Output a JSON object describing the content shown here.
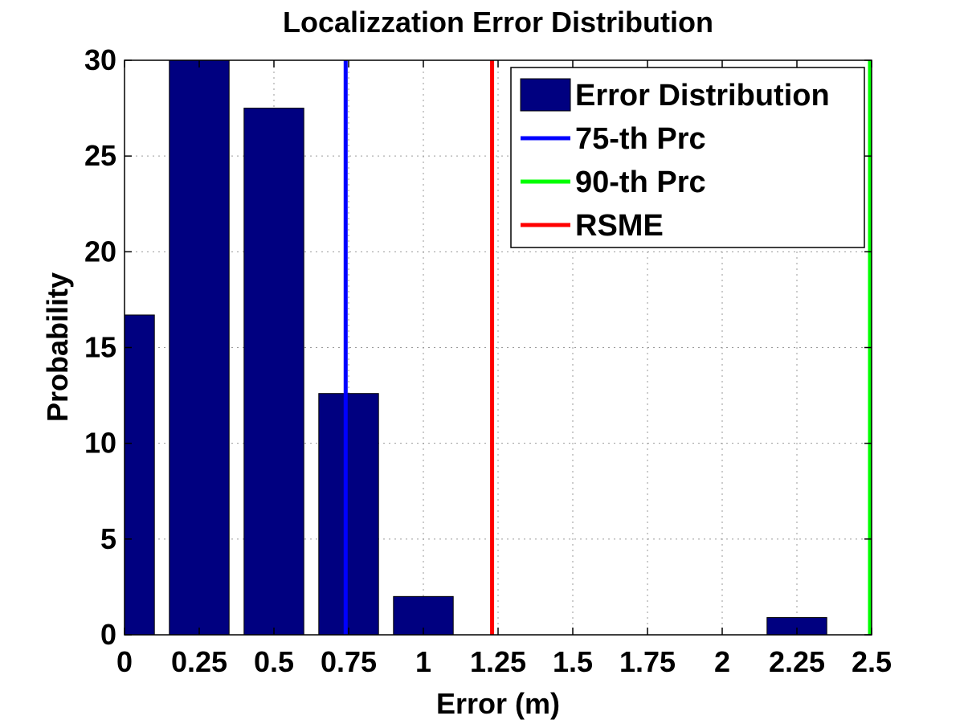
{
  "chart_data": {
    "type": "bar",
    "title": "Localizzation Error Distribution",
    "xlabel": "Error (m)",
    "ylabel": "Probability",
    "xlim": [
      0,
      2.5
    ],
    "ylim": [
      0,
      30
    ],
    "xticks": [
      0,
      0.25,
      0.5,
      0.75,
      1,
      1.25,
      1.5,
      1.75,
      2,
      2.25,
      2.5
    ],
    "xtick_labels": [
      "0",
      "0.25",
      "0.5",
      "0.75",
      "1",
      "1.25",
      "1.5",
      "1.75",
      "2",
      "2.25",
      "2.5"
    ],
    "yticks": [
      0,
      5,
      10,
      15,
      20,
      25,
      30
    ],
    "ytick_labels": [
      "0",
      "5",
      "10",
      "15",
      "20",
      "25",
      "30"
    ],
    "grid": true,
    "bar_width": 0.2,
    "bars": {
      "name": "Error Distribution",
      "color": "#000080",
      "x": [
        0,
        0.25,
        0.5,
        0.75,
        1,
        2.25
      ],
      "values": [
        16.7,
        30,
        27.5,
        12.6,
        2.0,
        0.9
      ]
    },
    "vlines": [
      {
        "name": "75-th Prc",
        "x": 0.74,
        "color": "#0000ff"
      },
      {
        "name": "90-th Prc",
        "x": 2.5,
        "color": "#00ff00"
      },
      {
        "name": "RSME",
        "x": 1.23,
        "color": "#ff0000"
      }
    ],
    "legend": {
      "position": "top-right",
      "entries": [
        "Error Distribution",
        "75-th Prc",
        "90-th Prc",
        "RSME"
      ]
    }
  }
}
